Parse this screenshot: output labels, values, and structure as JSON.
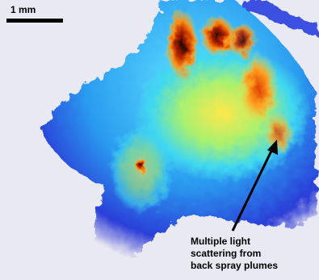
{
  "scale_bar": {
    "label": "1 mm"
  },
  "annotation": {
    "lines": [
      "Multiple light",
      "scattering from",
      "back spray plumes"
    ]
  }
}
